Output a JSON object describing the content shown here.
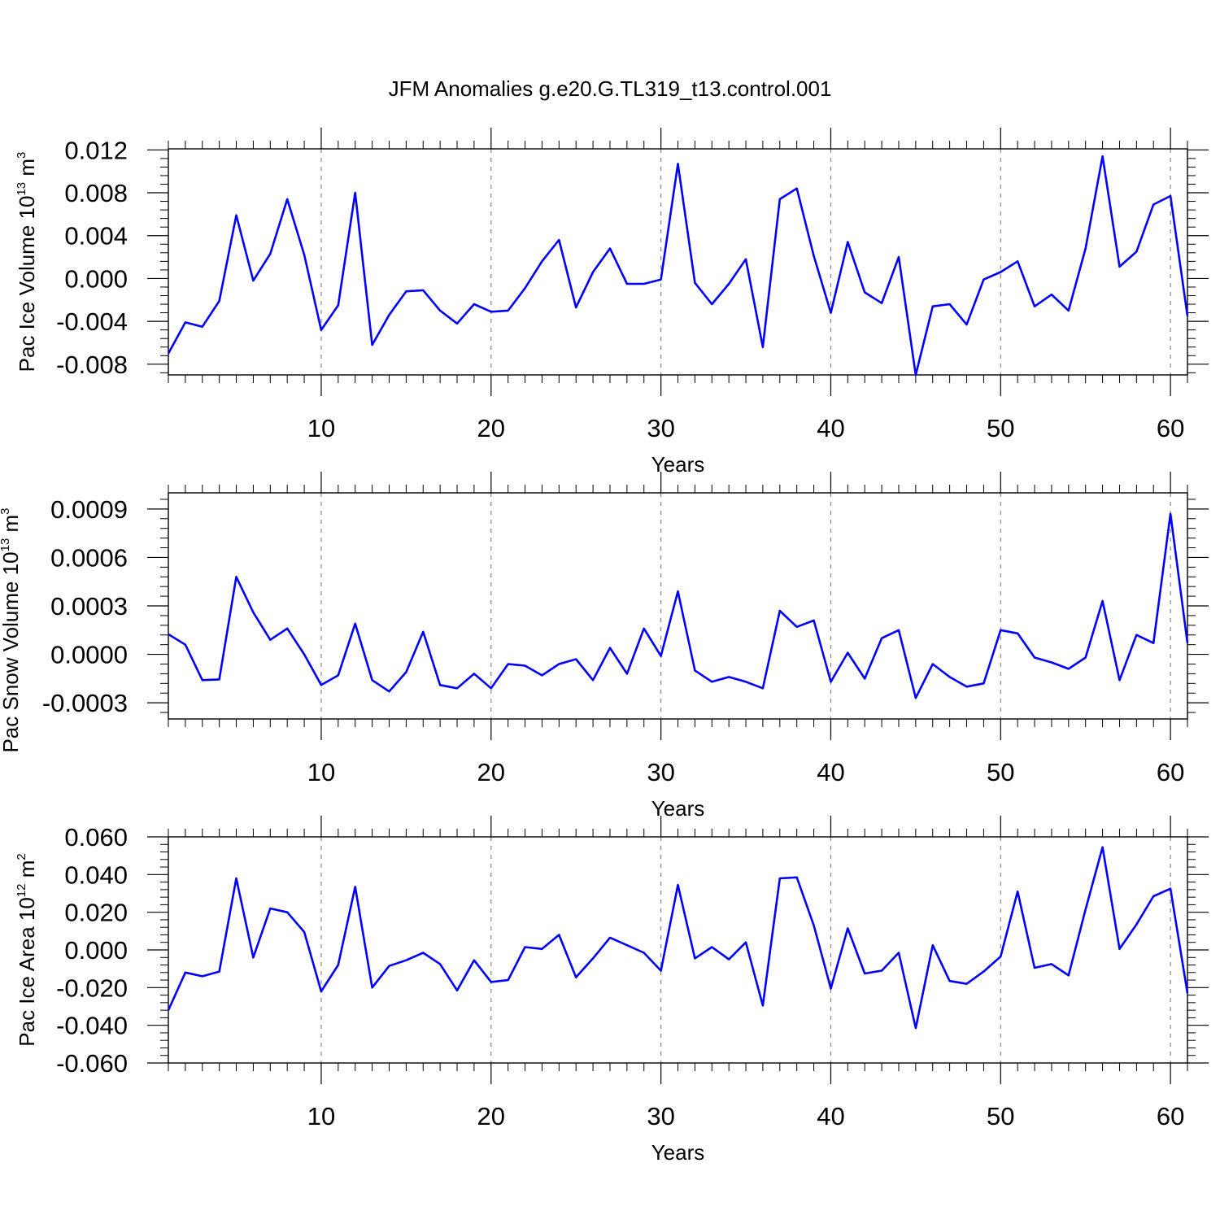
{
  "title": "JFM Anomalies g.e20.G.TL319_t13.control.001",
  "colors": {
    "line": "#0000ff",
    "axes": "#000000",
    "gridline": "#888888"
  },
  "chart_data": [
    {
      "type": "line",
      "ylabel_parts": {
        "text": "Pac Ice Volume 10",
        "sup1": "13",
        "unit": " m",
        "sup2": "3"
      },
      "xlabel": "Years",
      "xlim": [
        1,
        61
      ],
      "ylim": [
        -0.009,
        0.0121
      ],
      "xticks": [
        10,
        20,
        30,
        40,
        50,
        60
      ],
      "xtick_labels": [
        "10",
        "20",
        "30",
        "40",
        "50",
        "60"
      ],
      "yticks": [
        -0.008,
        -0.004,
        0.0,
        0.004,
        0.008,
        0.012
      ],
      "ytick_labels": [
        "-0.008",
        "-0.004",
        "0.000",
        "0.004",
        "0.008",
        "0.012"
      ],
      "grid": "vertical dashed at major x ticks",
      "x_start": 1,
      "series": [
        {
          "values": [
            -0.007,
            -0.0041,
            -0.0045,
            -0.0021,
            0.0059,
            -0.0002,
            0.0023,
            0.0074,
            0.0022,
            -0.0048,
            -0.0025,
            0.008,
            -0.0062,
            -0.0034,
            -0.0012,
            -0.0011,
            -0.003,
            -0.0042,
            -0.0024,
            -0.0031,
            -0.003,
            -0.0009,
            0.0016,
            0.0036,
            -0.0027,
            0.0006,
            0.0028,
            -0.0005,
            -0.0005,
            -0.0001,
            0.0107,
            -0.0004,
            -0.0024,
            -0.0005,
            0.0018,
            -0.0064,
            0.0074,
            0.0084,
            0.0021,
            -0.0032,
            0.0034,
            -0.0013,
            -0.0023,
            0.002,
            -0.009,
            -0.0026,
            -0.0024,
            -0.0043,
            -0.0001,
            0.0006,
            0.0016,
            -0.0026,
            -0.0015,
            -0.003,
            0.0028,
            0.0114,
            0.0011,
            0.0025,
            0.0069,
            0.0077,
            -0.0035
          ]
        }
      ]
    },
    {
      "type": "line",
      "ylabel_parts": {
        "text": "Pac Snow Volume 10",
        "sup1": "13",
        "unit": " m",
        "sup2": "3"
      },
      "xlabel": "Years",
      "xlim": [
        1,
        61
      ],
      "ylim": [
        -0.0004,
        0.001
      ],
      "xticks": [
        10,
        20,
        30,
        40,
        50,
        60
      ],
      "xtick_labels": [
        "10",
        "20",
        "30",
        "40",
        "50",
        "60"
      ],
      "yticks": [
        -0.0003,
        0.0,
        0.0003,
        0.0006,
        0.0009
      ],
      "ytick_labels": [
        "-0.0003",
        "0.0000",
        "0.0003",
        "0.0006",
        "0.0009"
      ],
      "grid": "vertical dashed at major x ticks",
      "x_start": 1,
      "series": [
        {
          "values": [
            0.000125,
            6e-05,
            -0.00016,
            -0.000155,
            0.00048,
            0.00026,
            9e-05,
            0.00016,
            0.0,
            -0.00019,
            -0.00013,
            0.00019,
            -0.00016,
            -0.00023,
            -0.00011,
            0.00014,
            -0.00019,
            -0.00021,
            -0.00012,
            -0.00021,
            -6e-05,
            -7e-05,
            -0.00013,
            -6e-05,
            -3e-05,
            -0.00016,
            4e-05,
            -0.00012,
            0.00016,
            -1e-05,
            0.00039,
            -0.0001,
            -0.00017,
            -0.00014,
            -0.00017,
            -0.00021,
            0.00027,
            0.00017,
            0.00021,
            -0.00017,
            1e-05,
            -0.00015,
            0.0001,
            0.00015,
            -0.00027,
            -6e-05,
            -0.00014,
            -0.0002,
            -0.00018,
            0.00015,
            0.00013,
            -2e-05,
            -5e-05,
            -9e-05,
            -2e-05,
            0.00033,
            -0.00016,
            0.00012,
            7e-05,
            0.00087,
            7e-05
          ]
        }
      ]
    },
    {
      "type": "line",
      "ylabel_parts": {
        "text": "Pac Ice Area 10",
        "sup1": "12",
        "unit": " m",
        "sup2": "2"
      },
      "xlabel": "Years",
      "xlim": [
        1,
        61
      ],
      "ylim": [
        -0.06,
        0.06
      ],
      "xticks": [
        10,
        20,
        30,
        40,
        50,
        60
      ],
      "xtick_labels": [
        "10",
        "20",
        "30",
        "40",
        "50",
        "60"
      ],
      "yticks": [
        -0.06,
        -0.04,
        -0.02,
        0.0,
        0.02,
        0.04,
        0.06
      ],
      "ytick_labels": [
        "-0.060",
        "-0.040",
        "-0.020",
        "0.000",
        "0.020",
        "0.040",
        "0.060"
      ],
      "grid": "vertical dashed at major x ticks",
      "x_start": 1,
      "series": [
        {
          "values": [
            -0.032,
            -0.012,
            -0.014,
            -0.0115,
            0.038,
            -0.004,
            0.022,
            0.02,
            0.0095,
            -0.022,
            -0.008,
            0.0335,
            -0.02,
            -0.0085,
            -0.0055,
            -0.0015,
            -0.0075,
            -0.0215,
            -0.0055,
            -0.017,
            -0.016,
            0.0015,
            0.0005,
            0.008,
            -0.0145,
            -0.0045,
            0.0065,
            0.0025,
            -0.0015,
            -0.011,
            0.0345,
            -0.0045,
            0.0015,
            -0.005,
            0.004,
            -0.0295,
            0.038,
            0.0385,
            0.013,
            -0.0205,
            0.0115,
            -0.0125,
            -0.011,
            -0.0015,
            -0.0415,
            0.0025,
            -0.0165,
            -0.018,
            -0.0115,
            -0.0035,
            0.031,
            -0.0095,
            -0.0075,
            -0.0135,
            0.0215,
            0.0545,
            0.0005,
            0.0135,
            0.0285,
            0.0325,
            -0.023
          ]
        }
      ]
    }
  ]
}
